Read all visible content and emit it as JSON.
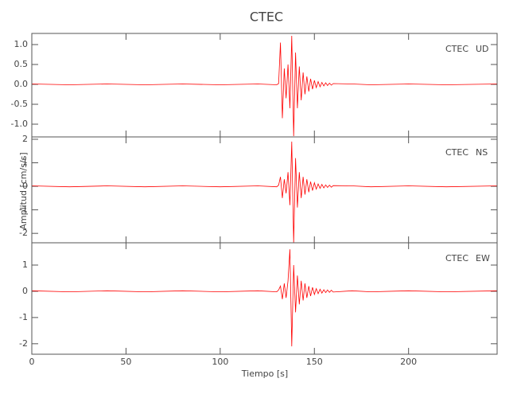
{
  "chart_data": {
    "type": "line",
    "title": "CTEC",
    "xlabel": "Tiempo [s]",
    "ylabel": "Amplitud [cm/s/s]",
    "color": "#ff0000",
    "xlim": [
      0,
      247
    ],
    "xticks": [
      0,
      50,
      100,
      150,
      200
    ],
    "x": [
      0,
      20,
      40,
      60,
      80,
      100,
      120,
      130,
      131,
      132,
      133,
      134,
      135,
      136,
      137,
      138,
      139,
      140,
      141,
      142,
      143,
      144,
      145,
      146,
      147,
      148,
      149,
      150,
      151,
      152,
      153,
      154,
      155,
      156,
      157,
      158,
      159,
      160,
      170,
      180,
      200,
      220,
      247
    ],
    "panels": [
      {
        "station": "CTEC",
        "component": "UD",
        "ylim": [
          -1.32,
          1.28
        ],
        "yticks": [
          {
            "value": -1,
            "label": "-1.0"
          },
          -0.5,
          {
            "value": 0,
            "label": "0.0"
          },
          0.5,
          {
            "value": 1,
            "label": "1.0"
          }
        ],
        "values": [
          0.01,
          -0.01,
          0.01,
          -0.01,
          0.01,
          -0.01,
          0.01,
          -0.01,
          0.02,
          1.05,
          -0.85,
          0.4,
          -0.35,
          0.5,
          -0.6,
          1.22,
          -1.3,
          0.8,
          -0.6,
          0.45,
          -0.4,
          0.3,
          -0.25,
          0.2,
          -0.18,
          0.14,
          -0.12,
          0.1,
          -0.08,
          0.07,
          -0.06,
          0.05,
          -0.04,
          0.04,
          -0.03,
          0.03,
          -0.02,
          0.02,
          0.01,
          -0.01,
          0.01,
          -0.01,
          0.01
        ]
      },
      {
        "station": "CTEC",
        "component": "NS",
        "ylim": [
          -2.4,
          2.1
        ],
        "yticks": [
          -2,
          -1,
          0,
          1,
          2
        ],
        "values": [
          0.02,
          -0.02,
          0.02,
          -0.02,
          0.02,
          -0.02,
          0.02,
          -0.02,
          0.05,
          0.4,
          -0.5,
          0.3,
          -0.3,
          0.6,
          -0.8,
          1.9,
          -2.4,
          1.2,
          -0.9,
          0.6,
          -0.5,
          0.4,
          -0.35,
          0.3,
          -0.25,
          0.2,
          -0.18,
          0.15,
          -0.12,
          0.1,
          -0.09,
          0.08,
          -0.07,
          0.06,
          -0.05,
          0.05,
          -0.04,
          0.03,
          0.02,
          -0.02,
          0.02,
          -0.02,
          0.02
        ]
      },
      {
        "station": "CTEC",
        "component": "EW",
        "ylim": [
          -2.4,
          1.85
        ],
        "yticks": [
          -2,
          -1,
          0,
          1
        ],
        "values": [
          0.02,
          -0.02,
          0.02,
          -0.02,
          0.02,
          -0.02,
          0.02,
          -0.02,
          0.05,
          0.2,
          -0.3,
          0.3,
          -0.25,
          0.4,
          1.6,
          -2.1,
          1.0,
          -0.8,
          0.6,
          -0.5,
          0.4,
          -0.35,
          0.3,
          -0.25,
          0.2,
          -0.18,
          0.15,
          -0.12,
          0.1,
          -0.09,
          0.08,
          -0.07,
          0.06,
          -0.05,
          0.05,
          -0.04,
          0.04,
          -0.03,
          0.02,
          -0.02,
          0.02,
          -0.02,
          0.02
        ]
      }
    ]
  }
}
